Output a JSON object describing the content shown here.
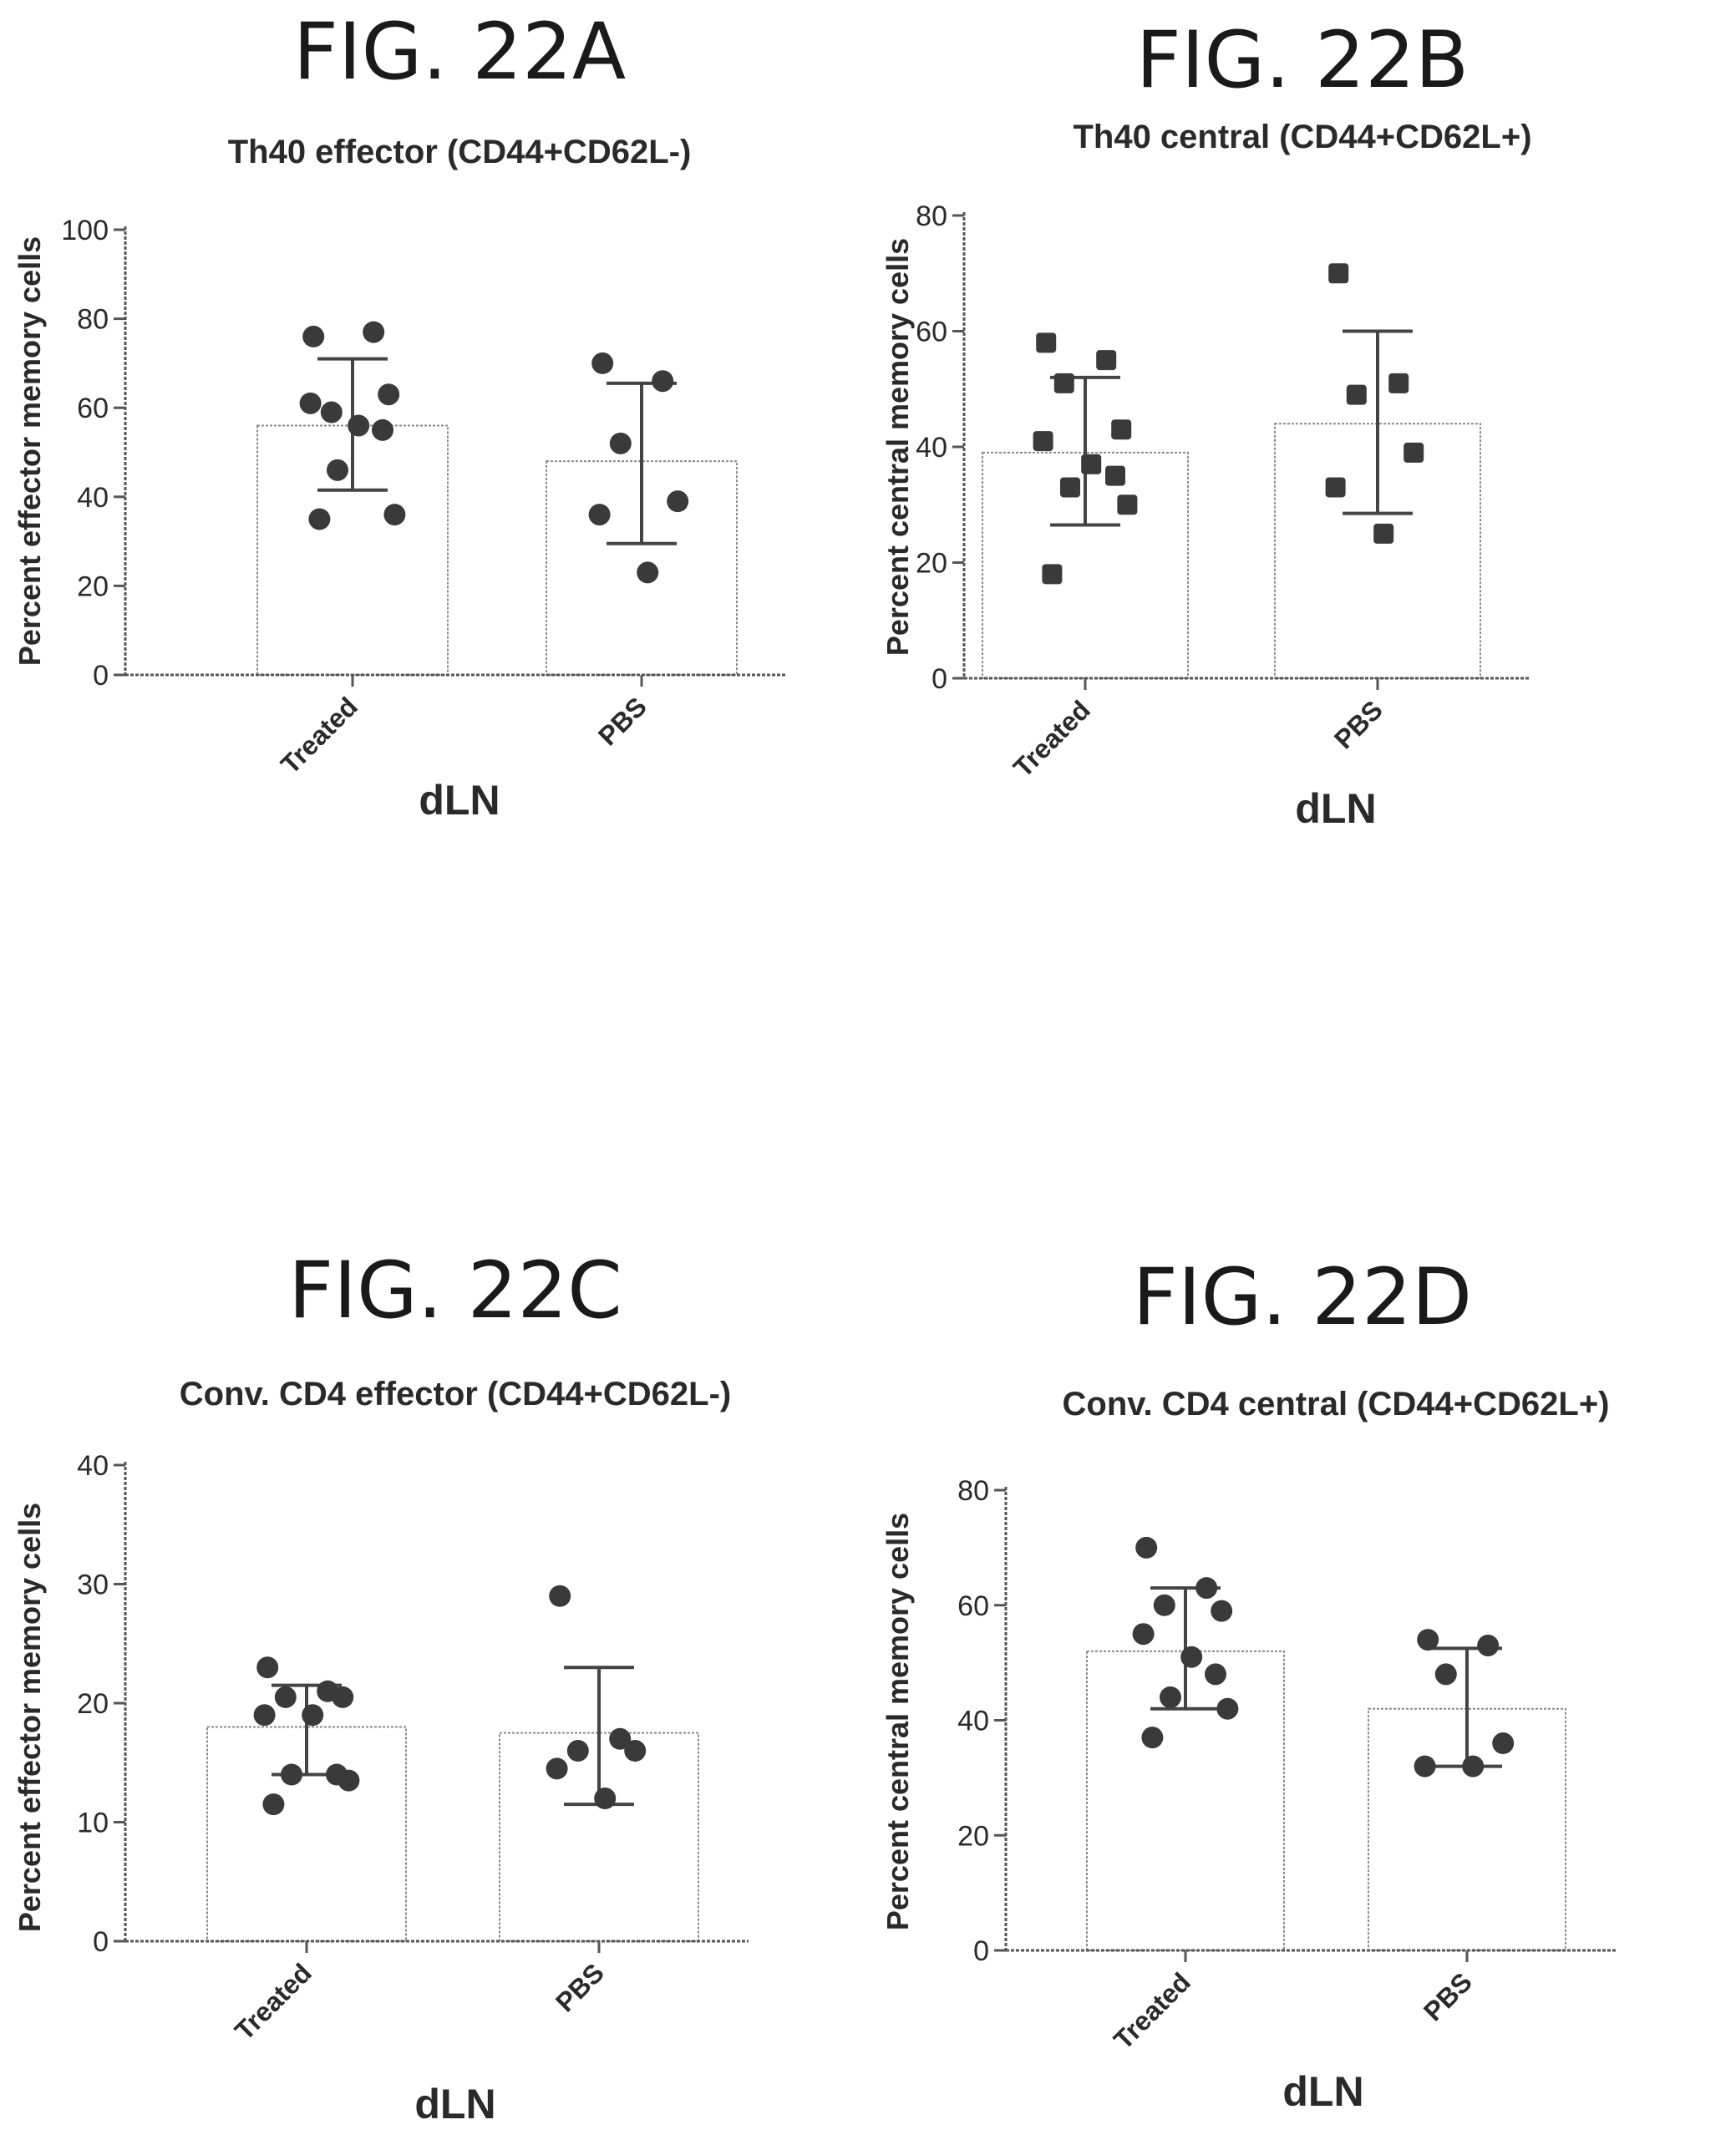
{
  "charts": [
    {
      "fig_label": "FIG. 22A",
      "chart_data": {
        "type": "bar",
        "title": "Th40 effector (CD44+CD62L-)",
        "xlabel": "dLN",
        "ylabel": "Percent effector memory cells",
        "categories": [
          "Treated",
          "PBS"
        ],
        "values": [
          56,
          48
        ],
        "errors": [
          [
            41.5,
            71
          ],
          [
            29.5,
            65.5
          ]
        ],
        "points": [
          [
            76,
            77,
            59,
            63,
            61,
            56,
            55,
            46,
            36,
            35
          ],
          [
            70,
            66,
            52,
            39,
            36,
            23
          ]
        ],
        "ylim": [
          0,
          100
        ],
        "yticks": [
          0,
          20,
          40,
          60,
          80,
          100
        ]
      }
    },
    {
      "fig_label": "FIG. 22B",
      "chart_data": {
        "type": "bar",
        "title": "Th40 central (CD44+CD62L+)",
        "xlabel": "dLN",
        "ylabel": "Percent central memory cells",
        "categories": [
          "Treated",
          "PBS"
        ],
        "values": [
          39,
          44
        ],
        "errors": [
          [
            26.5,
            52
          ],
          [
            28.5,
            60
          ]
        ],
        "points": [
          [
            58,
            55,
            51,
            43,
            41,
            37,
            35,
            33,
            30,
            18
          ],
          [
            70,
            51,
            49,
            39,
            33,
            25
          ]
        ],
        "ylim": [
          0,
          80
        ],
        "yticks": [
          0,
          20,
          40,
          60,
          80
        ]
      }
    },
    {
      "fig_label": "FIG. 22C",
      "chart_data": {
        "type": "bar",
        "title": "Conv. CD4 effector (CD44+CD62L-)",
        "xlabel": "dLN",
        "ylabel": "Percent effector memory cells",
        "categories": [
          "Treated",
          "PBS"
        ],
        "values": [
          18,
          17.5
        ],
        "errors": [
          [
            14,
            21.5
          ],
          [
            11.5,
            23
          ]
        ],
        "points": [
          [
            23,
            21,
            20.5,
            20.5,
            19,
            19,
            14,
            14,
            13.5,
            11.5
          ],
          [
            29,
            17,
            16,
            16,
            14.5,
            12
          ]
        ],
        "ylim": [
          0,
          40
        ],
        "yticks": [
          0,
          10,
          20,
          30,
          40
        ]
      }
    },
    {
      "fig_label": "FIG. 22D",
      "chart_data": {
        "type": "bar",
        "title": "Conv. CD4 central (CD44+CD62L+)",
        "xlabel": "dLN",
        "ylabel": "Percent central memory cells",
        "categories": [
          "Treated",
          "PBS"
        ],
        "values": [
          52,
          42
        ],
        "errors": [
          [
            42,
            63
          ],
          [
            32,
            52.5
          ]
        ],
        "points": [
          [
            70,
            63,
            60,
            59,
            55,
            51,
            48,
            44,
            42,
            37
          ],
          [
            54,
            53,
            48,
            36,
            32,
            32
          ]
        ],
        "ylim": [
          0,
          80
        ],
        "yticks": [
          0,
          20,
          40,
          60,
          80
        ]
      }
    }
  ]
}
